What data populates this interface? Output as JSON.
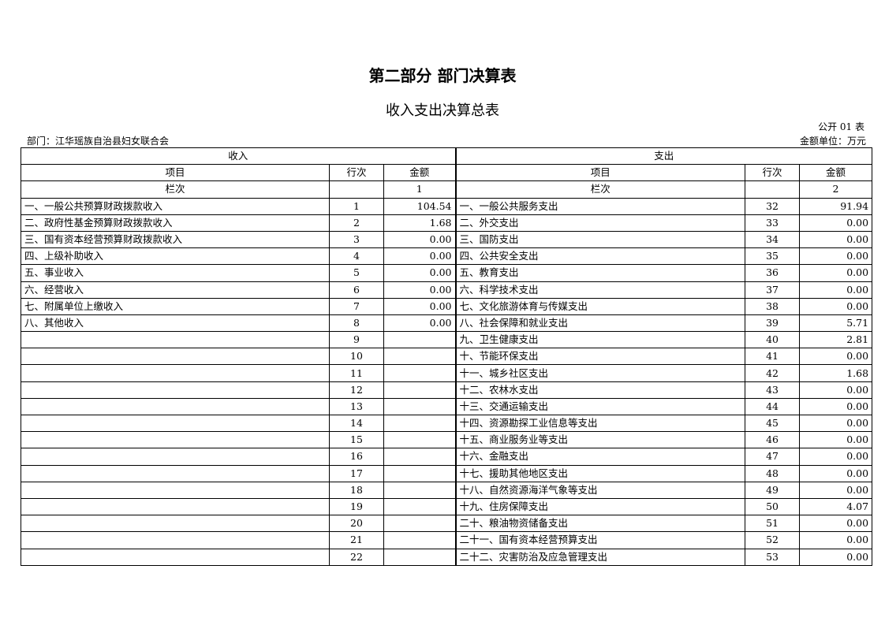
{
  "title": "第二部分 部门决算表",
  "subtitle": "收入支出决算总表",
  "table_code": "公开 01 表",
  "department": "部门：江华瑶族自治县妇女联合会",
  "unit": "金额单位：万元",
  "headers": {
    "income": "收入",
    "expense": "支出",
    "item": "项目",
    "row_no": "行次",
    "amount": "金额",
    "column_label": "栏次",
    "income_col": "1",
    "expense_col": "2"
  },
  "rows": [
    {
      "in_item": "一、一般公共预算财政拨款收入",
      "in_no": "1",
      "in_amt": "104.54",
      "ex_item": "一、一般公共服务支出",
      "ex_no": "32",
      "ex_amt": "91.94"
    },
    {
      "in_item": "二、政府性基金预算财政拨款收入",
      "in_no": "2",
      "in_amt": "1.68",
      "ex_item": "二、外交支出",
      "ex_no": "33",
      "ex_amt": "0.00"
    },
    {
      "in_item": "三、国有资本经营预算财政拨款收入",
      "in_no": "3",
      "in_amt": "0.00",
      "ex_item": "三、国防支出",
      "ex_no": "34",
      "ex_amt": "0.00"
    },
    {
      "in_item": "四、上级补助收入",
      "in_no": "4",
      "in_amt": "0.00",
      "ex_item": "四、公共安全支出",
      "ex_no": "35",
      "ex_amt": "0.00"
    },
    {
      "in_item": "五、事业收入",
      "in_no": "5",
      "in_amt": "0.00",
      "ex_item": "五、教育支出",
      "ex_no": "36",
      "ex_amt": "0.00"
    },
    {
      "in_item": "六、经营收入",
      "in_no": "6",
      "in_amt": "0.00",
      "ex_item": "六、科学技术支出",
      "ex_no": "37",
      "ex_amt": "0.00"
    },
    {
      "in_item": "七、附属单位上缴收入",
      "in_no": "7",
      "in_amt": "0.00",
      "ex_item": "七、文化旅游体育与传媒支出",
      "ex_no": "38",
      "ex_amt": "0.00"
    },
    {
      "in_item": "八、其他收入",
      "in_no": "8",
      "in_amt": "0.00",
      "ex_item": "八、社会保障和就业支出",
      "ex_no": "39",
      "ex_amt": "5.71"
    },
    {
      "in_item": "",
      "in_no": "9",
      "in_amt": "",
      "ex_item": "九、卫生健康支出",
      "ex_no": "40",
      "ex_amt": "2.81"
    },
    {
      "in_item": "",
      "in_no": "10",
      "in_amt": "",
      "ex_item": "十、节能环保支出",
      "ex_no": "41",
      "ex_amt": "0.00"
    },
    {
      "in_item": "",
      "in_no": "11",
      "in_amt": "",
      "ex_item": "十一、城乡社区支出",
      "ex_no": "42",
      "ex_amt": "1.68"
    },
    {
      "in_item": "",
      "in_no": "12",
      "in_amt": "",
      "ex_item": "十二、农林水支出",
      "ex_no": "43",
      "ex_amt": "0.00"
    },
    {
      "in_item": "",
      "in_no": "13",
      "in_amt": "",
      "ex_item": "十三、交通运输支出",
      "ex_no": "44",
      "ex_amt": "0.00"
    },
    {
      "in_item": "",
      "in_no": "14",
      "in_amt": "",
      "ex_item": "十四、资源勘探工业信息等支出",
      "ex_no": "45",
      "ex_amt": "0.00"
    },
    {
      "in_item": "",
      "in_no": "15",
      "in_amt": "",
      "ex_item": "十五、商业服务业等支出",
      "ex_no": "46",
      "ex_amt": "0.00"
    },
    {
      "in_item": "",
      "in_no": "16",
      "in_amt": "",
      "ex_item": "十六、金融支出",
      "ex_no": "47",
      "ex_amt": "0.00"
    },
    {
      "in_item": "",
      "in_no": "17",
      "in_amt": "",
      "ex_item": "十七、援助其他地区支出",
      "ex_no": "48",
      "ex_amt": "0.00"
    },
    {
      "in_item": "",
      "in_no": "18",
      "in_amt": "",
      "ex_item": "十八、自然资源海洋气象等支出",
      "ex_no": "49",
      "ex_amt": "0.00"
    },
    {
      "in_item": "",
      "in_no": "19",
      "in_amt": "",
      "ex_item": "十九、住房保障支出",
      "ex_no": "50",
      "ex_amt": "4.07"
    },
    {
      "in_item": "",
      "in_no": "20",
      "in_amt": "",
      "ex_item": "二十、粮油物资储备支出",
      "ex_no": "51",
      "ex_amt": "0.00"
    },
    {
      "in_item": "",
      "in_no": "21",
      "in_amt": "",
      "ex_item": "二十一、国有资本经营预算支出",
      "ex_no": "52",
      "ex_amt": "0.00"
    },
    {
      "in_item": "",
      "in_no": "22",
      "in_amt": "",
      "ex_item": "二十二、灾害防治及应急管理支出",
      "ex_no": "53",
      "ex_amt": "0.00"
    }
  ]
}
